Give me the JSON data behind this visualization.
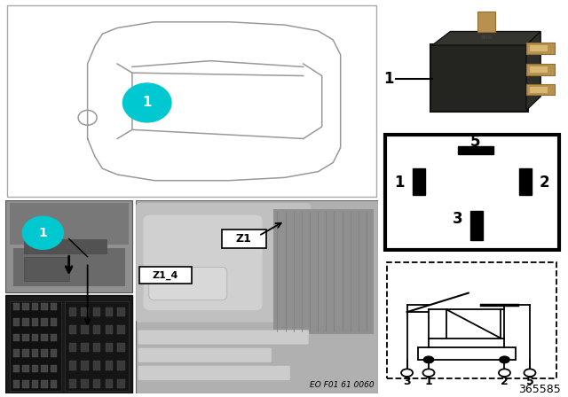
{
  "bg_color": "#ffffff",
  "car_color": "#999999",
  "cyan_color": "#00c8d0",
  "black": "#000000",
  "white": "#ffffff",
  "photo_bg": "#b8b8b8",
  "photo_dark": "#888888",
  "photo_light": "#d0d0d0",
  "relay_body": "#1e1e1e",
  "relay_pin": "#b89050",
  "page_number": "365585",
  "eo_label": "EO F01 61 0060",
  "label_Z1": "Z1",
  "label_Z1_4": "Z1_4",
  "schematic_terminals": [
    "3",
    "1",
    "2",
    "5"
  ]
}
